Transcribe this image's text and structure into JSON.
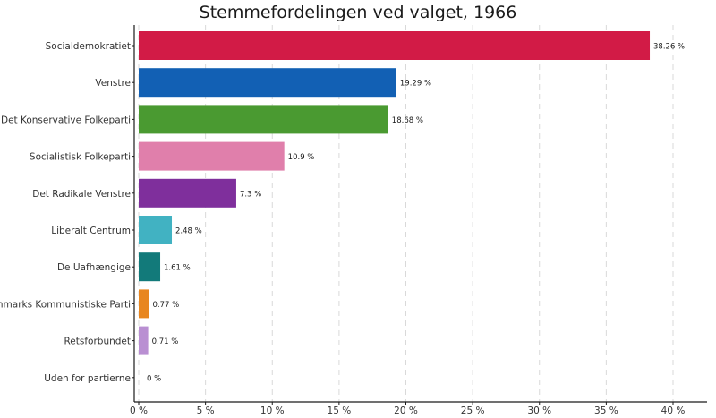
{
  "chart_data": {
    "type": "bar",
    "orientation": "horizontal",
    "title": "Stemmefordelingen ved valget, 1966",
    "categories": [
      "Socialdemokratiet",
      "Venstre",
      "Det Konservative Folkeparti",
      "Socialistisk Folkeparti",
      "Det Radikale Venstre",
      "Liberalt Centrum",
      "De Uafhængige",
      "Danmarks Kommunistiske Parti",
      "Retsforbundet",
      "Uden for partierne"
    ],
    "values": [
      38.26,
      19.29,
      18.68,
      10.9,
      7.3,
      2.48,
      1.61,
      0.77,
      0.71,
      0
    ],
    "value_labels": [
      "38.26 %",
      "19.29 %",
      "18.68 %",
      "10.9 %",
      "7.3 %",
      "2.48 %",
      "1.61 %",
      "0.77 %",
      "0.71 %",
      "0 %"
    ],
    "colors": [
      "#d21b46",
      "#1260b4",
      "#4a9a31",
      "#e07fab",
      "#7f2f9c",
      "#41b2c2",
      "#127a7a",
      "#e8861f",
      "#b98fd2",
      "#999999"
    ],
    "xlim": [
      0,
      40
    ],
    "xticks": [
      0,
      5,
      10,
      15,
      20,
      25,
      30,
      35,
      40
    ],
    "xtick_labels": [
      "0 %",
      "5 %",
      "10 %",
      "15 %",
      "20 %",
      "25 %",
      "30 %",
      "35 %",
      "40 %"
    ],
    "xlabel": "",
    "ylabel": "",
    "grid": "vertical-dashed",
    "legend": "none"
  }
}
